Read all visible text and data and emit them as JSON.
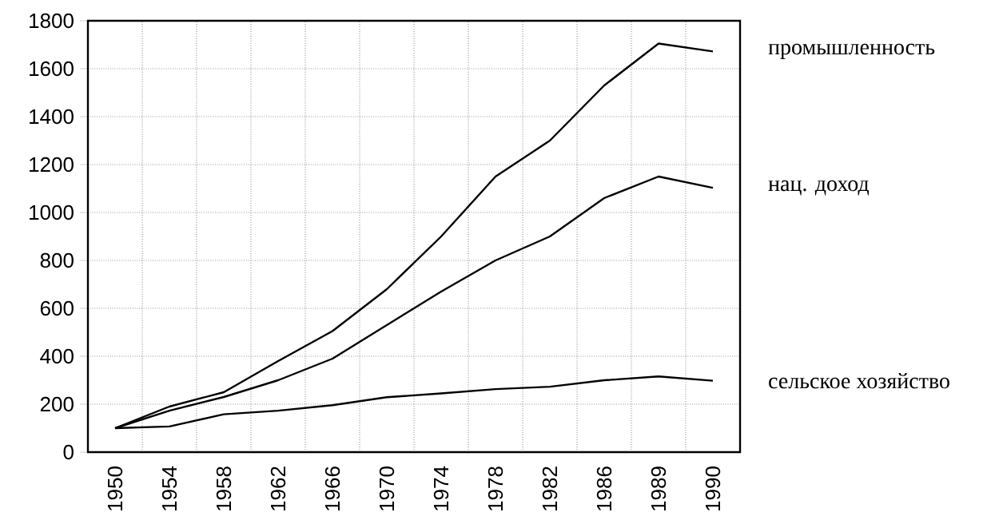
{
  "chart_data": {
    "type": "line",
    "categories": [
      "1950",
      "1954",
      "1958",
      "1962",
      "1966",
      "1970",
      "1974",
      "1978",
      "1982",
      "1986",
      "1989",
      "1990"
    ],
    "series": [
      {
        "name": "промышленность",
        "color": "#000000",
        "values": [
          100,
          190,
          250,
          380,
          505,
          680,
          900,
          1150,
          1300,
          1530,
          1705,
          1672
        ]
      },
      {
        "name": "нац. доход",
        "color": "#000000",
        "values": [
          100,
          173,
          230,
          300,
          390,
          530,
          670,
          800,
          900,
          1060,
          1150,
          1103
        ]
      },
      {
        "name": "сельское хозяйство",
        "color": "#000000",
        "values": [
          100,
          107,
          158,
          173,
          196,
          229,
          245,
          263,
          273,
          300,
          316,
          298
        ]
      }
    ],
    "ylim": [
      0,
      1800
    ],
    "yticks": [
      0,
      200,
      400,
      600,
      800,
      1000,
      1200,
      1400,
      1600,
      1800
    ],
    "grid": true
  }
}
